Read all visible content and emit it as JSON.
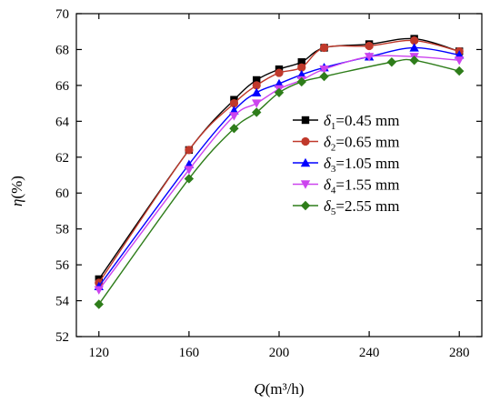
{
  "chart_data": {
    "type": "line",
    "xlabel": {
      "symbol": "Q",
      "unit": "(m³/h)"
    },
    "ylabel": {
      "symbol": "η",
      "unit": "(%)"
    },
    "xlim": [
      110,
      290
    ],
    "ylim": [
      52,
      70
    ],
    "xticks": [
      120,
      160,
      200,
      240,
      280
    ],
    "yticks": [
      52,
      54,
      56,
      58,
      60,
      62,
      64,
      66,
      68,
      70
    ],
    "legend_position": "right-center",
    "series": [
      {
        "name": "δ1=0.45 mm",
        "legend": {
          "sym": "δ",
          "sub": "1",
          "rest": "=0.45 mm"
        },
        "color": "#000000",
        "marker": "square",
        "x": [
          120,
          160,
          180,
          190,
          200,
          210,
          220,
          240,
          260,
          280
        ],
        "y": [
          55.2,
          62.4,
          65.2,
          66.3,
          66.9,
          67.3,
          68.1,
          68.3,
          68.6,
          67.9
        ]
      },
      {
        "name": "δ2=0.65 mm",
        "legend": {
          "sym": "δ",
          "sub": "2",
          "rest": "=0.65 mm"
        },
        "color": "#c0392b",
        "marker": "circle",
        "x": [
          120,
          160,
          180,
          190,
          200,
          210,
          220,
          240,
          260,
          280
        ],
        "y": [
          55.0,
          62.4,
          65.0,
          66.0,
          66.7,
          67.0,
          68.1,
          68.2,
          68.5,
          67.9
        ]
      },
      {
        "name": "δ3=1.05 mm",
        "legend": {
          "sym": "δ",
          "sub": "3",
          "rest": "=1.05 mm"
        },
        "color": "#0000ff",
        "marker": "triangle-up",
        "x": [
          120,
          160,
          180,
          190,
          200,
          210,
          220,
          240,
          260,
          280
        ],
        "y": [
          54.8,
          61.6,
          64.6,
          65.6,
          66.1,
          66.6,
          67.0,
          67.6,
          68.1,
          67.7
        ]
      },
      {
        "name": "δ4=1.55 mm",
        "legend": {
          "sym": "δ",
          "sub": "4",
          "rest": "=1.55 mm"
        },
        "color": "#cc44ee",
        "marker": "triangle-down",
        "x": [
          120,
          160,
          180,
          190,
          200,
          210,
          220,
          240,
          260,
          280
        ],
        "y": [
          54.6,
          61.3,
          64.3,
          65.0,
          65.8,
          66.3,
          66.9,
          67.6,
          67.6,
          67.4
        ]
      },
      {
        "name": "δ5=2.55 mm",
        "legend": {
          "sym": "δ",
          "sub": "5",
          "rest": "=2.55 mm"
        },
        "color": "#2e7d1a",
        "marker": "diamond",
        "x": [
          120,
          160,
          180,
          190,
          200,
          210,
          220,
          250,
          260,
          280
        ],
        "y": [
          53.8,
          60.8,
          63.6,
          64.5,
          65.6,
          66.2,
          66.5,
          67.3,
          67.4,
          66.8
        ]
      }
    ]
  }
}
